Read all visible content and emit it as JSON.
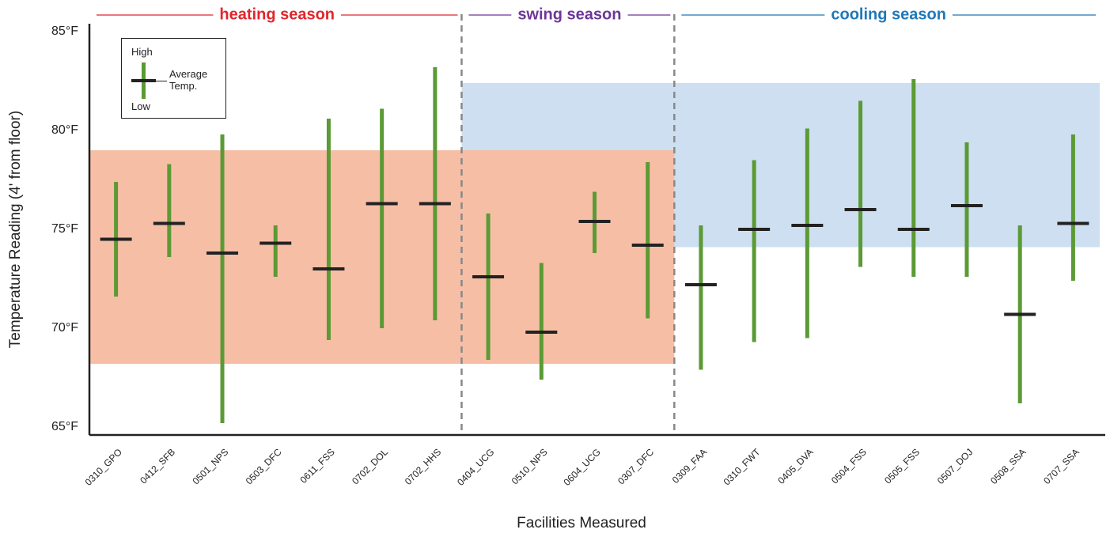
{
  "chart_data": {
    "type": "range",
    "y_label": "Temperature Reading  (4' from floor)",
    "x_label": "Facilities Measured",
    "ylim": [
      64.6,
      85.4
    ],
    "yticks": [
      {
        "value": 65,
        "label": "65°F"
      },
      {
        "value": 70,
        "label": "70°F"
      },
      {
        "value": 75,
        "label": "75°F"
      },
      {
        "value": 80,
        "label": "80°F"
      },
      {
        "value": 85,
        "label": "85°F"
      }
    ],
    "groups": [
      {
        "name": "heating season",
        "color": "#e0262d",
        "categories": [
          "0310_GPO",
          "0412_SFB",
          "0501_NPS",
          "0503_DFC",
          "0611_FSS",
          "0702_DOL",
          "0702_HHS"
        ]
      },
      {
        "name": "swing season",
        "color": "#6c3696",
        "categories": [
          "0404_UCG",
          "0510_NPS",
          "0604_UCG",
          "0307_DFC"
        ]
      },
      {
        "name": "cooling season",
        "color": "#1f78b8",
        "categories": [
          "0309_FAA",
          "0310_FWT",
          "0405_DVA",
          "0504_FSS",
          "0505_FSS",
          "0507_DOJ",
          "0508_SSA",
          "0707_SSA"
        ]
      }
    ],
    "bands": [
      {
        "low": 74.1,
        "high": 82.4,
        "color": "#cddff0",
        "groups": [
          1,
          2
        ]
      },
      {
        "low": 68.2,
        "high": 79.0,
        "color": "#f7bea6",
        "groups": [
          0,
          1
        ]
      }
    ],
    "range_color": "#5b9a34",
    "series": [
      {
        "name": "High",
        "values": [
          77.4,
          78.3,
          79.8,
          75.2,
          80.6,
          81.1,
          83.2,
          75.8,
          73.3,
          76.9,
          78.4,
          75.2,
          78.5,
          80.1,
          81.5,
          82.6,
          79.4,
          75.2,
          79.8
        ]
      },
      {
        "name": "Low",
        "values": [
          71.6,
          73.6,
          65.2,
          72.6,
          69.4,
          70.0,
          70.4,
          68.4,
          67.4,
          73.8,
          70.5,
          67.9,
          69.3,
          69.5,
          73.1,
          72.6,
          72.6,
          66.2,
          72.4
        ]
      },
      {
        "name": "Average Temp.",
        "color": "#222222",
        "values": [
          74.5,
          75.3,
          73.8,
          74.3,
          73.0,
          76.3,
          76.3,
          72.6,
          69.8,
          75.4,
          74.2,
          72.2,
          75.0,
          75.2,
          76.0,
          75.0,
          76.2,
          70.7,
          75.3
        ]
      }
    ]
  }
}
